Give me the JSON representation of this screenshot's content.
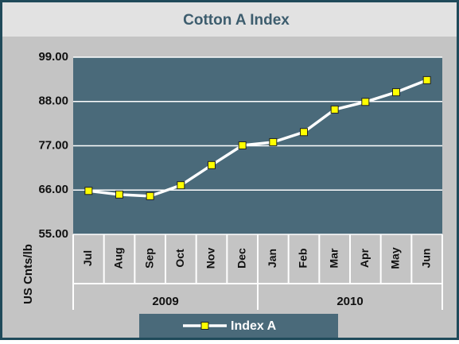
{
  "chart_data": {
    "type": "line",
    "title": "Cotton A Index",
    "y_label": "US Cnts/lb",
    "categories": [
      "Jul",
      "Aug",
      "Sep",
      "Oct",
      "Nov",
      "Dec",
      "Jan",
      "Feb",
      "Mar",
      "Apr",
      "May",
      "Jun"
    ],
    "category_groups": [
      "2009",
      "2010"
    ],
    "series": [
      {
        "name": "Index A",
        "color": "#ffffff",
        "marker_color": "#ffff00",
        "values": [
          65.8,
          64.9,
          64.5,
          67.2,
          72.2,
          77.1,
          77.9,
          80.4,
          86.0,
          87.9,
          90.3,
          93.3
        ]
      }
    ],
    "ylim": [
      55,
      99
    ],
    "yticks": [
      {
        "value": 55,
        "label": "55.00"
      },
      {
        "value": 66,
        "label": "66.00"
      },
      {
        "value": 77,
        "label": "77.00"
      },
      {
        "value": 88,
        "label": "88.00"
      },
      {
        "value": 99,
        "label": "99.00"
      }
    ],
    "grid": true,
    "plot_background": "#4a6a7a",
    "legend": "bottom"
  }
}
